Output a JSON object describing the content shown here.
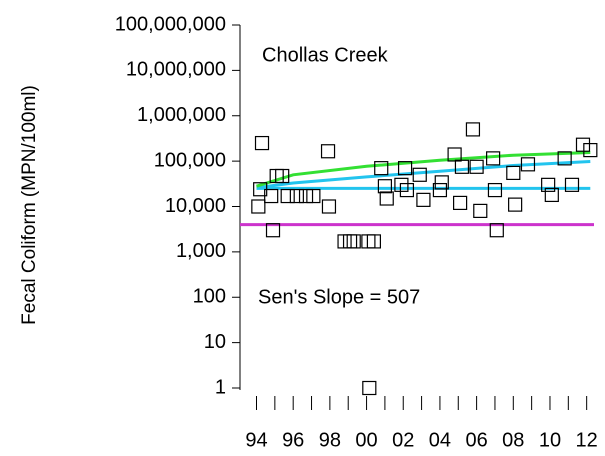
{
  "chart_data": {
    "type": "scatter",
    "title": "Chollas Creek",
    "annotation": "Sen's Slope = 507",
    "y_label": "Fecal Coliform (MPN/100ml)",
    "ylog": true,
    "ylim": [
      1,
      100000000
    ],
    "yticks": [
      {
        "value": 100000000,
        "label": "100,000,000"
      },
      {
        "value": 10000000,
        "label": "10,000,000"
      },
      {
        "value": 1000000,
        "label": "1,000,000"
      },
      {
        "value": 100000,
        "label": "100,000"
      },
      {
        "value": 10000,
        "label": "10,000"
      },
      {
        "value": 1000,
        "label": "1,000"
      },
      100,
      10,
      1
    ],
    "xlim": [
      1993.1,
      2012.4
    ],
    "xticks": [
      {
        "value": 1994,
        "label": "94"
      },
      {
        "value": 1996,
        "label": "96"
      },
      {
        "value": 1998,
        "label": "98"
      },
      {
        "value": 2000,
        "label": "00"
      },
      {
        "value": 2002,
        "label": "02"
      },
      {
        "value": 2004,
        "label": "04"
      },
      {
        "value": 2006,
        "label": "06"
      },
      {
        "value": 2008,
        "label": "08"
      },
      {
        "value": 2010,
        "label": "10"
      },
      {
        "value": 2012,
        "label": "12"
      }
    ],
    "xminor_ticks": [
      1995,
      1997,
      1999,
      2001,
      2003,
      2005,
      2007,
      2009,
      2011
    ],
    "marker_color": "#000000",
    "title_color": "#000000",
    "annotation_color": "#e8101a",
    "points": {
      "x": [
        1994.1,
        1994.3,
        1994.2,
        1994.8,
        1994.9,
        1995.1,
        1995.4,
        1995.7,
        1996.2,
        1996.7,
        1997.1,
        1997.9,
        1997.95,
        1998.8,
        1999.1,
        1999.3,
        2000.1,
        2000.4,
        2000.15,
        2000.8,
        2001.0,
        2001.1,
        2001.9,
        2002.1,
        2002.2,
        2002.9,
        2003.1,
        2004.0,
        2004.1,
        2004.8,
        2005.1,
        2005.2,
        2005.8,
        2006.0,
        2006.2,
        2006.9,
        2007.0,
        2007.1,
        2008.0,
        2008.1,
        2008.8,
        2009.9,
        2010.1,
        2010.8,
        2011.2,
        2011.8,
        2012.2
      ],
      "values": [
        10000,
        250000,
        24000,
        17000,
        3000,
        47000,
        47000,
        17000,
        17000,
        17000,
        17000,
        165000,
        10000,
        1700,
        1700,
        1700,
        1700,
        1700,
        1,
        70000,
        28000,
        15000,
        30000,
        70000,
        23000,
        50000,
        14000,
        23000,
        34000,
        140000,
        12000,
        75000,
        500000,
        75000,
        8000,
        115000,
        23000,
        3000,
        55000,
        11000,
        85000,
        30000,
        18000,
        115000,
        30000,
        230000,
        175000
      ]
    },
    "lines": [
      {
        "color": "#cc33cc",
        "x": [
          1993.1,
          2012.4
        ],
        "values": [
          4000,
          4000
        ]
      },
      {
        "color": "#22c4ee",
        "x": [
          1994,
          2012.2
        ],
        "values": [
          25000,
          25000
        ]
      },
      {
        "color": "#22c4ee",
        "x": [
          1994,
          1996,
          2000,
          2004,
          2008,
          2012.2
        ],
        "values": [
          26000,
          33000,
          45000,
          60000,
          80000,
          98000
        ]
      },
      {
        "color": "#33e033",
        "x": [
          1994,
          1996,
          2000,
          2004,
          2008,
          2012.2
        ],
        "values": [
          28000,
          50000,
          77000,
          105000,
          135000,
          155000
        ]
      }
    ]
  }
}
